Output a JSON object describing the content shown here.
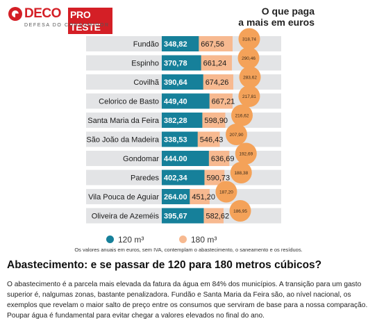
{
  "logo": {
    "brand_left": "DECO",
    "brand_right": "PRO TESTE",
    "subtitle": "DEFESA DO CONSUMIDOR"
  },
  "header": {
    "title_line1": "O que paga",
    "title_line2": "a mais em euros"
  },
  "chart_data": {
    "type": "bar",
    "orientation": "horizontal",
    "stacked": true,
    "categories": [
      "Fundão",
      "Espinho",
      "Covilhã",
      "Celorico de Basto",
      "Santa Maria da Feira",
      "São João da Madeira",
      "Gondomar",
      "Paredes",
      "Vila Pouca de Aguiar",
      "Oliveira de Azeméis"
    ],
    "series": [
      {
        "name": "120 m³",
        "color": "#16809a",
        "values": [
          348.82,
          370.78,
          390.64,
          449.4,
          382.28,
          338.53,
          444.0,
          402.34,
          264.0,
          395.67
        ]
      },
      {
        "name": "180 m³",
        "color": "#f7b990",
        "values": [
          667.56,
          661.24,
          674.26,
          667.21,
          598.9,
          546.43,
          636.69,
          590.73,
          451.2,
          582.62
        ]
      }
    ],
    "labels_120": [
      "348,82",
      "370,78",
      "390,64",
      "449,40",
      "382,28",
      "338,53",
      "444.00",
      "402,34",
      "264.00",
      "395,67"
    ],
    "labels_180": [
      "667,56",
      "661,24",
      "674,26",
      "667,21",
      "598,90",
      "546,43",
      "636,69",
      "590,73",
      "451,20",
      "582,62"
    ],
    "difference": [
      318.74,
      290.46,
      283.62,
      217.81,
      216.62,
      207.9,
      192.69,
      188.38,
      187.2,
      186.95
    ],
    "labels_difference": [
      "318,74",
      "290,46",
      "283,62",
      "217,81",
      "216,62",
      "207,90",
      "192,69",
      "188,38",
      "187,20",
      "186,95"
    ],
    "legend_position": "bottom-left",
    "colors": {
      "bar_120": "#16809a",
      "bar_180": "#f7b990",
      "row_bg": "#e3e4e6",
      "bubble": "#f4a259"
    }
  },
  "legend": {
    "item1": "120 m³",
    "item2": "180 m³"
  },
  "note": "Os valores anuais em euros, sem IVA, contemplam o abastecimento, o saneamento e os resíduos.",
  "article": {
    "title": "Abastecimento: e se passar de 120 para 180 metros cúbicos?",
    "body": "O abastecimento é a parcela mais elevada da fatura da água em 84% dos municípios. A transição para um gasto superior é, nalgumas zonas, bastante penalizadora. Fundão e Santa Maria da Feira são, ao nível nacional, os exemplos que revelam o maior salto de preço entre os consumos que serviram de base para a nossa comparação. Poupar água é fundamental para evitar chegar a valores elevados no final do ano."
  }
}
